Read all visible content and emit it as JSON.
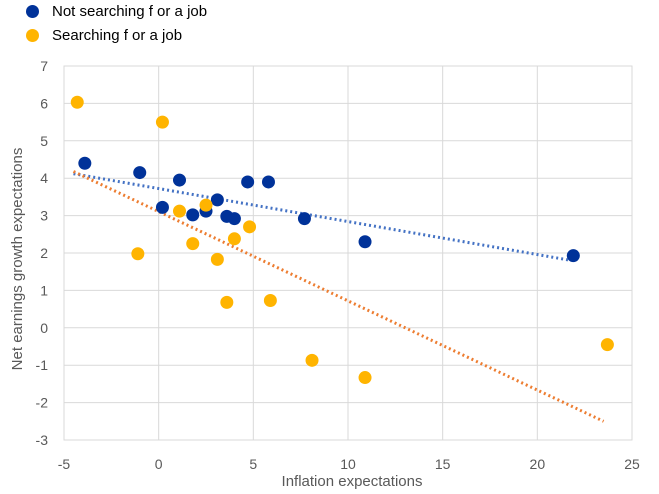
{
  "legend": [
    {
      "label": "Not searching f or a job",
      "color": "#003299"
    },
    {
      "label": "Searching  f or a job",
      "color": "#FFB400"
    }
  ],
  "chart_data": {
    "type": "scatter",
    "xlabel": "Inflation expectations",
    "ylabel": "Net earnings growth expectations",
    "xlim": [
      -5,
      25
    ],
    "ylim": [
      -3,
      7
    ],
    "xticks": [
      -5,
      0,
      5,
      10,
      15,
      20,
      25
    ],
    "yticks": [
      -3,
      -2,
      -1,
      0,
      1,
      2,
      3,
      4,
      5,
      6,
      7
    ],
    "grid": true,
    "legend_position": "top-left",
    "series": [
      {
        "name": "Not searching f or a job",
        "color": "#003299",
        "points": [
          [
            -3.9,
            4.4
          ],
          [
            -1.0,
            4.15
          ],
          [
            0.2,
            3.22
          ],
          [
            1.1,
            3.95
          ],
          [
            1.8,
            3.02
          ],
          [
            2.5,
            3.12
          ],
          [
            3.1,
            3.42
          ],
          [
            3.6,
            2.98
          ],
          [
            4.0,
            2.92
          ],
          [
            4.7,
            3.9
          ],
          [
            5.8,
            3.9
          ],
          [
            7.7,
            2.92
          ],
          [
            10.9,
            2.3
          ],
          [
            21.9,
            1.93
          ]
        ],
        "trendline": {
          "x": [
            -4.5,
            21.8
          ],
          "y": [
            4.12,
            1.8
          ],
          "color": "#4472C4"
        }
      },
      {
        "name": "Searching  f or a job",
        "color": "#FFB400",
        "points": [
          [
            -4.3,
            6.03
          ],
          [
            -1.1,
            1.98
          ],
          [
            0.2,
            5.5
          ],
          [
            1.1,
            3.12
          ],
          [
            1.8,
            2.25
          ],
          [
            2.5,
            3.28
          ],
          [
            3.1,
            1.83
          ],
          [
            3.6,
            0.68
          ],
          [
            4.0,
            2.38
          ],
          [
            4.8,
            2.7
          ],
          [
            5.9,
            0.73
          ],
          [
            8.1,
            -0.87
          ],
          [
            10.9,
            -1.33
          ],
          [
            23.7,
            -0.45
          ]
        ],
        "trendline": {
          "x": [
            -4.5,
            23.5
          ],
          "y": [
            4.18,
            -2.5
          ],
          "color": "#ED7D31"
        }
      }
    ]
  }
}
